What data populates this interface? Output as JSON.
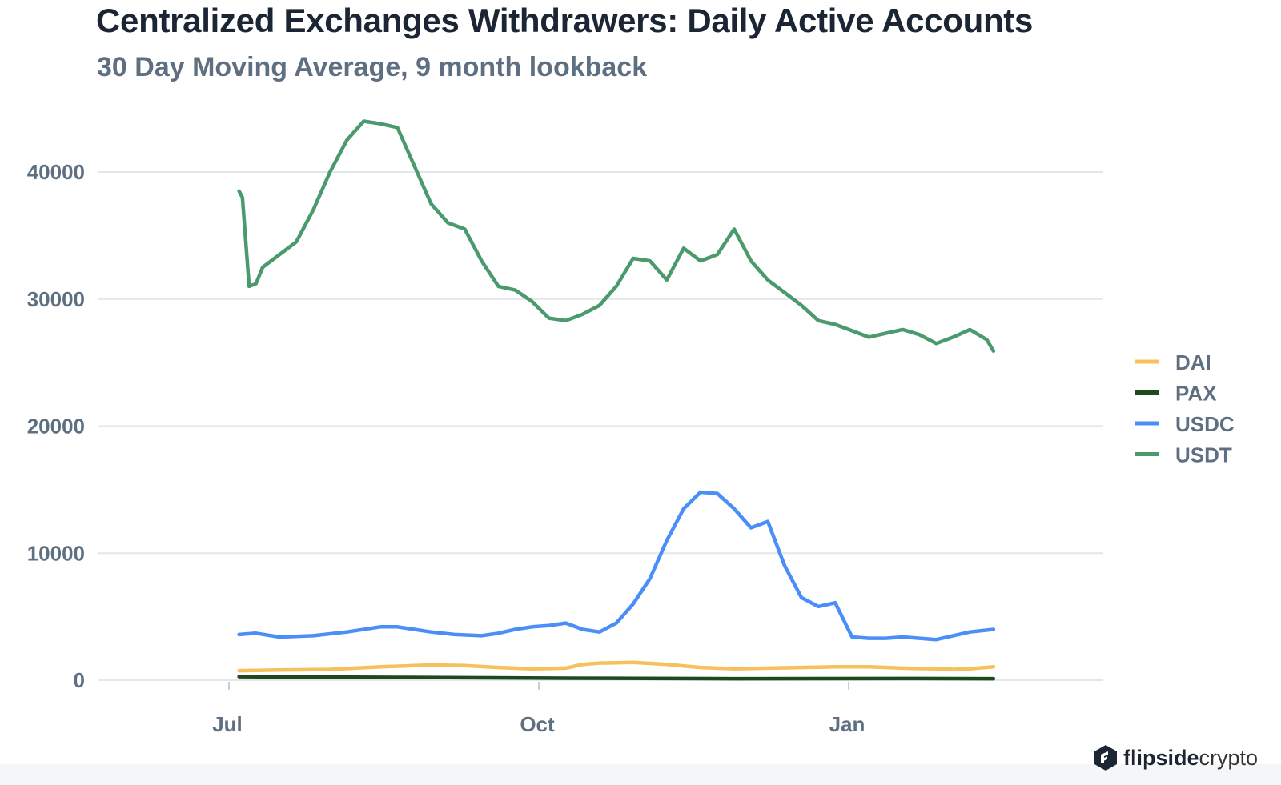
{
  "title": "Centralized Exchanges Withdrawers: Daily Active Accounts",
  "subtitle": "30 Day Moving Average, 9 month lookback",
  "brand": {
    "bold": "flipside",
    "light": "crypto",
    "icon": "flipside-hexagon-logo"
  },
  "chart_data": {
    "type": "line",
    "title": "Centralized Exchanges Withdrawers: Daily Active Accounts",
    "subtitle": "30 Day Moving Average, 9 month lookback",
    "xlabel": "",
    "ylabel": "",
    "ylim": [
      0,
      44000
    ],
    "yticks": [
      0,
      10000,
      20000,
      30000,
      40000
    ],
    "ytick_labels": [
      "0",
      "10000",
      "20000",
      "30000",
      "40000"
    ],
    "xticks": [
      0,
      92,
      184
    ],
    "xtick_labels": [
      "Jul",
      "Oct",
      "Jan"
    ],
    "x_unit": "days since Jul 1",
    "grid": true,
    "legend_position": "right",
    "series": [
      {
        "name": "DAI",
        "color": "#f6c05c",
        "x": [
          3,
          15,
          30,
          45,
          60,
          70,
          80,
          90,
          100,
          105,
          110,
          120,
          130,
          140,
          150,
          160,
          170,
          180,
          190,
          200,
          210,
          215,
          220,
          227
        ],
        "values": [
          750,
          800,
          850,
          1050,
          1200,
          1150,
          1000,
          900,
          950,
          1250,
          1350,
          1400,
          1250,
          1000,
          900,
          950,
          1000,
          1050,
          1050,
          950,
          900,
          850,
          900,
          1050
        ]
      },
      {
        "name": "PAX",
        "color": "#1d4a1d",
        "x": [
          3,
          50,
          100,
          150,
          200,
          227
        ],
        "values": [
          280,
          220,
          160,
          120,
          130,
          120
        ]
      },
      {
        "name": "USDC",
        "color": "#4a8ef7",
        "x": [
          3,
          8,
          15,
          25,
          35,
          45,
          50,
          60,
          67,
          75,
          80,
          85,
          90,
          95,
          100,
          105,
          110,
          115,
          120,
          125,
          130,
          135,
          140,
          145,
          150,
          155,
          160,
          165,
          170,
          175,
          180,
          185,
          190,
          195,
          200,
          205,
          210,
          215,
          220,
          227
        ],
        "values": [
          3600,
          3700,
          3400,
          3500,
          3800,
          4200,
          4200,
          3800,
          3600,
          3500,
          3700,
          4000,
          4200,
          4300,
          4500,
          4000,
          3800,
          4500,
          6000,
          8000,
          11000,
          13500,
          14800,
          14700,
          13500,
          12000,
          12500,
          9000,
          6500,
          5800,
          6100,
          3400,
          3300,
          3300,
          3400,
          3300,
          3200,
          3500,
          3800,
          4000
        ]
      },
      {
        "name": "USDT",
        "color": "#4a9a6e",
        "x": [
          3,
          4,
          6,
          8,
          10,
          15,
          20,
          25,
          30,
          35,
          40,
          45,
          50,
          55,
          60,
          65,
          70,
          75,
          80,
          85,
          90,
          95,
          100,
          105,
          110,
          115,
          120,
          125,
          130,
          135,
          140,
          145,
          150,
          155,
          160,
          165,
          170,
          175,
          180,
          185,
          190,
          195,
          200,
          205,
          210,
          215,
          220,
          225,
          227
        ],
        "values": [
          38500,
          38000,
          31000,
          31200,
          32500,
          33500,
          34500,
          37000,
          40000,
          42500,
          44000,
          43800,
          43500,
          40500,
          37500,
          36000,
          35500,
          33000,
          31000,
          30700,
          29800,
          28500,
          28300,
          28800,
          29500,
          31000,
          33200,
          33000,
          31500,
          34000,
          33000,
          33500,
          35500,
          33000,
          31500,
          30500,
          29500,
          28300,
          28000,
          27500,
          27000,
          27300,
          27600,
          27200,
          26500,
          27000,
          27600,
          26800,
          25900
        ]
      }
    ]
  }
}
